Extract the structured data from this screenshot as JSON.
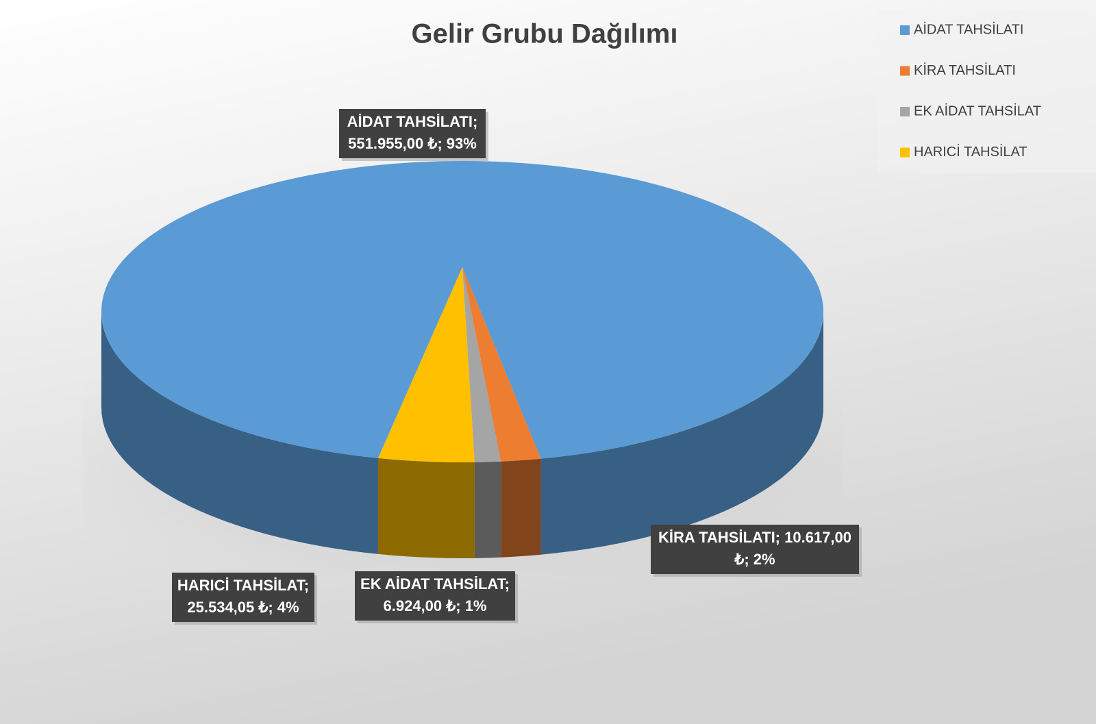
{
  "chart_data": {
    "type": "pie3d",
    "title": "Gelir Grubu Dağılımı",
    "categories": [
      "AİDAT TAHSİLATI",
      "KİRA TAHSİLATI",
      "EK AİDAT TAHSİLAT",
      "HARICİ TAHSİLAT"
    ],
    "values": [
      551955,
      10617,
      6924,
      25534.05
    ],
    "value_labels": [
      [
        "AİDAT TAHSİLATI;",
        "551.955,00 ₺; 93%"
      ],
      [
        "KİRA TAHSİLATI; 10.617,00",
        "₺; 2%"
      ],
      [
        "EK AİDAT TAHSİLAT;",
        "6.924,00 ₺; 1%"
      ],
      [
        "HARICİ TAHSİLAT;",
        "25.534,05 ₺; 4%"
      ]
    ],
    "colors": [
      "#5b9bd5",
      "#ed7d31",
      "#a5a5a5",
      "#ffc000"
    ],
    "legend": "top-right"
  }
}
